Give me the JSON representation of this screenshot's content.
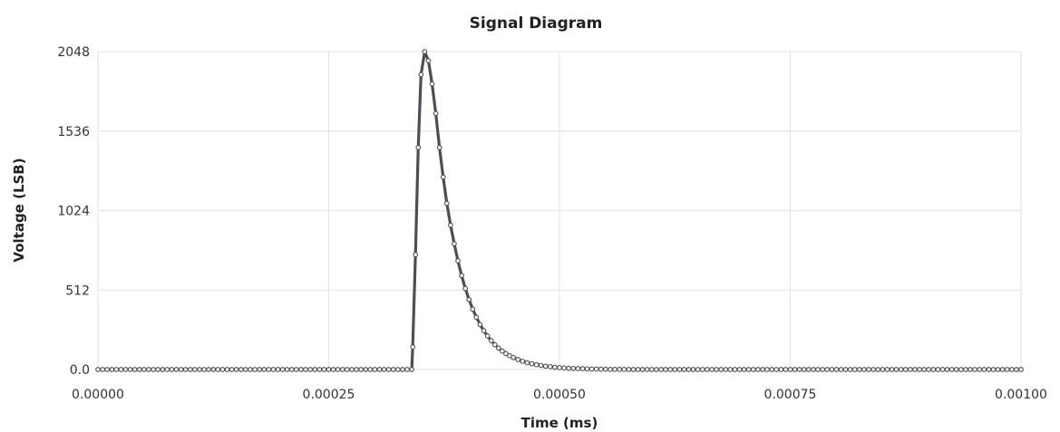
{
  "chart_data": {
    "type": "line",
    "title": "Signal Diagram",
    "xlabel": "Time (ms)",
    "ylabel": "Voltage (LSB)",
    "xlim": [
      0,
      0.001
    ],
    "ylim": [
      0,
      2048
    ],
    "x_ticks": [
      "0.00000",
      "0.00025",
      "0.00050",
      "0.00075",
      "0.00100"
    ],
    "y_ticks": [
      "0.0",
      "512",
      "1024",
      "1536",
      "2048"
    ],
    "x_tick_values": [
      0,
      0.00025,
      0.0005,
      0.00075,
      0.001
    ],
    "y_tick_values": [
      0,
      512,
      1024,
      1536,
      2048
    ],
    "grid": true,
    "legend": "none",
    "colors": {
      "line": "#4a4e56",
      "grid": "#e6e6ea",
      "marker_fill": "#ffffff"
    },
    "series": [
      {
        "points": [
          [
            0.0,
            0
          ],
          [
            5e-06,
            0
          ],
          [
            1e-05,
            0
          ],
          [
            1.5e-05,
            0
          ],
          [
            2e-05,
            0
          ],
          [
            2.5e-05,
            0
          ],
          [
            3e-05,
            0
          ],
          [
            3.5e-05,
            0
          ],
          [
            4e-05,
            0
          ],
          [
            4.5e-05,
            0
          ],
          [
            5e-05,
            0
          ],
          [
            5.5e-05,
            0
          ],
          [
            6e-05,
            0
          ],
          [
            6.5e-05,
            0
          ],
          [
            7e-05,
            0
          ],
          [
            7.5e-05,
            0
          ],
          [
            8e-05,
            0
          ],
          [
            8.5e-05,
            0
          ],
          [
            9e-05,
            0
          ],
          [
            9.5e-05,
            0
          ],
          [
            0.0001,
            0
          ],
          [
            0.000105,
            0
          ],
          [
            0.00011,
            0
          ],
          [
            0.000115,
            0
          ],
          [
            0.00012,
            0
          ],
          [
            0.000125,
            0
          ],
          [
            0.00013,
            0
          ],
          [
            0.000135,
            0
          ],
          [
            0.00014,
            0
          ],
          [
            0.000145,
            0
          ],
          [
            0.00015,
            0
          ],
          [
            0.000155,
            0
          ],
          [
            0.00016,
            0
          ],
          [
            0.000165,
            0
          ],
          [
            0.00017,
            0
          ],
          [
            0.000175,
            0
          ],
          [
            0.00018,
            0
          ],
          [
            0.000185,
            0
          ],
          [
            0.00019,
            0
          ],
          [
            0.000195,
            0
          ],
          [
            0.0002,
            0
          ],
          [
            0.000205,
            0
          ],
          [
            0.00021,
            0
          ],
          [
            0.000215,
            0
          ],
          [
            0.00022,
            0
          ],
          [
            0.000225,
            0
          ],
          [
            0.00023,
            0
          ],
          [
            0.000235,
            0
          ],
          [
            0.00024,
            0
          ],
          [
            0.000245,
            0
          ],
          [
            0.00025,
            0
          ],
          [
            0.000255,
            0
          ],
          [
            0.00026,
            0
          ],
          [
            0.000265,
            0
          ],
          [
            0.00027,
            0
          ],
          [
            0.000275,
            0
          ],
          [
            0.00028,
            0
          ],
          [
            0.000285,
            0
          ],
          [
            0.00029,
            0
          ],
          [
            0.000295,
            0
          ],
          [
            0.0003,
            0
          ],
          [
            0.000305,
            0
          ],
          [
            0.00031,
            0
          ],
          [
            0.000315,
            0
          ],
          [
            0.00032,
            0
          ],
          [
            0.000325,
            0
          ],
          [
            0.00033,
            0
          ],
          [
            0.000335,
            0
          ],
          [
            0.00034,
            0
          ],
          [
            0.000341,
            145
          ],
          [
            0.000344,
            740
          ],
          [
            0.000347,
            1430
          ],
          [
            0.00035,
            1900
          ],
          [
            0.000354,
            2048
          ],
          [
            0.000358,
            1990
          ],
          [
            0.000362,
            1840
          ],
          [
            0.000366,
            1650
          ],
          [
            0.00037,
            1430
          ],
          [
            0.000374,
            1240
          ],
          [
            0.000378,
            1070
          ],
          [
            0.000382,
            930
          ],
          [
            0.000386,
            810
          ],
          [
            0.00039,
            700
          ],
          [
            0.000394,
            605
          ],
          [
            0.000398,
            522
          ],
          [
            0.000402,
            451
          ],
          [
            0.000406,
            389
          ],
          [
            0.00041,
            336
          ],
          [
            0.000414,
            290
          ],
          [
            0.000418,
            250
          ],
          [
            0.000422,
            216
          ],
          [
            0.000426,
            186
          ],
          [
            0.00043,
            160
          ],
          [
            0.000434,
            138
          ],
          [
            0.000438,
            119
          ],
          [
            0.000442,
            103
          ],
          [
            0.000446,
            89
          ],
          [
            0.00045,
            77
          ],
          [
            0.000455,
            64
          ],
          [
            0.00046,
            53
          ],
          [
            0.000465,
            44
          ],
          [
            0.00047,
            37
          ],
          [
            0.000475,
            31
          ],
          [
            0.00048,
            26
          ],
          [
            0.000485,
            21
          ],
          [
            0.00049,
            18
          ],
          [
            0.000495,
            15
          ],
          [
            0.0005,
            12
          ],
          [
            0.000505,
            10
          ],
          [
            0.00051,
            8
          ],
          [
            0.000515,
            7
          ],
          [
            0.00052,
            6
          ],
          [
            0.000525,
            5
          ],
          [
            0.00053,
            4
          ],
          [
            0.000535,
            3
          ],
          [
            0.00054,
            3
          ],
          [
            0.000545,
            2
          ],
          [
            0.00055,
            2
          ],
          [
            0.000555,
            1
          ],
          [
            0.00056,
            1
          ],
          [
            0.000565,
            1
          ],
          [
            0.00057,
            1
          ],
          [
            0.000575,
            0
          ],
          [
            0.00058,
            0
          ],
          [
            0.000585,
            0
          ],
          [
            0.00059,
            0
          ],
          [
            0.000595,
            0
          ],
          [
            0.0006,
            0
          ],
          [
            0.000605,
            0
          ],
          [
            0.00061,
            0
          ],
          [
            0.000615,
            0
          ],
          [
            0.00062,
            0
          ],
          [
            0.000625,
            0
          ],
          [
            0.00063,
            0
          ],
          [
            0.000635,
            0
          ],
          [
            0.00064,
            0
          ],
          [
            0.000645,
            0
          ],
          [
            0.00065,
            0
          ],
          [
            0.000655,
            0
          ],
          [
            0.00066,
            0
          ],
          [
            0.000665,
            0
          ],
          [
            0.00067,
            0
          ],
          [
            0.000675,
            0
          ],
          [
            0.00068,
            0
          ],
          [
            0.000685,
            0
          ],
          [
            0.00069,
            0
          ],
          [
            0.000695,
            0
          ],
          [
            0.0007,
            0
          ],
          [
            0.000705,
            0
          ],
          [
            0.00071,
            0
          ],
          [
            0.000715,
            0
          ],
          [
            0.00072,
            0
          ],
          [
            0.000725,
            0
          ],
          [
            0.00073,
            0
          ],
          [
            0.000735,
            0
          ],
          [
            0.00074,
            0
          ],
          [
            0.000745,
            0
          ],
          [
            0.00075,
            0
          ],
          [
            0.000755,
            0
          ],
          [
            0.00076,
            0
          ],
          [
            0.000765,
            0
          ],
          [
            0.00077,
            0
          ],
          [
            0.000775,
            0
          ],
          [
            0.00078,
            0
          ],
          [
            0.000785,
            0
          ],
          [
            0.00079,
            0
          ],
          [
            0.000795,
            0
          ],
          [
            0.0008,
            0
          ],
          [
            0.000805,
            0
          ],
          [
            0.00081,
            0
          ],
          [
            0.000815,
            0
          ],
          [
            0.00082,
            0
          ],
          [
            0.000825,
            0
          ],
          [
            0.00083,
            0
          ],
          [
            0.000835,
            0
          ],
          [
            0.00084,
            0
          ],
          [
            0.000845,
            0
          ],
          [
            0.00085,
            0
          ],
          [
            0.000855,
            0
          ],
          [
            0.00086,
            0
          ],
          [
            0.000865,
            0
          ],
          [
            0.00087,
            0
          ],
          [
            0.000875,
            0
          ],
          [
            0.00088,
            0
          ],
          [
            0.000885,
            0
          ],
          [
            0.00089,
            0
          ],
          [
            0.000895,
            0
          ],
          [
            0.0009,
            0
          ],
          [
            0.000905,
            0
          ],
          [
            0.00091,
            0
          ],
          [
            0.000915,
            0
          ],
          [
            0.00092,
            0
          ],
          [
            0.000925,
            0
          ],
          [
            0.00093,
            0
          ],
          [
            0.000935,
            0
          ],
          [
            0.00094,
            0
          ],
          [
            0.000945,
            0
          ],
          [
            0.00095,
            0
          ],
          [
            0.000955,
            0
          ],
          [
            0.00096,
            0
          ],
          [
            0.000965,
            0
          ],
          [
            0.00097,
            0
          ],
          [
            0.000975,
            0
          ],
          [
            0.00098,
            0
          ],
          [
            0.000985,
            0
          ],
          [
            0.00099,
            0
          ],
          [
            0.000995,
            0
          ],
          [
            0.001,
            0
          ]
        ]
      }
    ]
  }
}
